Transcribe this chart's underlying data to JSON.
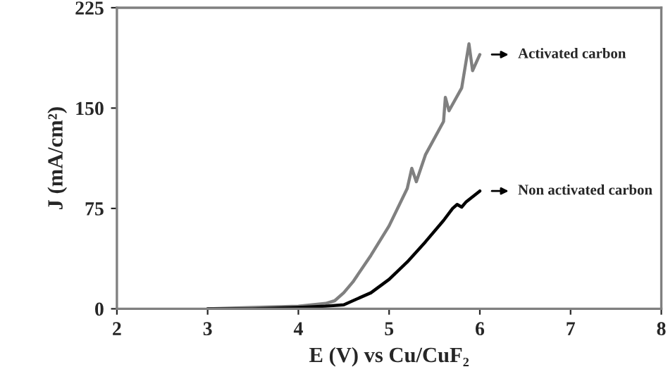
{
  "chart_data": {
    "type": "line",
    "xlabel": "E (V) vs Cu/CuF₂",
    "ylabel": "J (mA/cm²)",
    "xlim": [
      2,
      8
    ],
    "xticks": [
      2,
      3,
      4,
      5,
      6,
      7,
      8
    ],
    "ylim": [
      0,
      225
    ],
    "yticks": [
      0,
      75,
      150,
      225
    ],
    "grid": false,
    "legend": false,
    "marker": "none",
    "line_style": "solid",
    "series": [
      {
        "color": "#808080",
        "x": [
          3.0,
          3.5,
          4.0,
          4.3,
          4.4,
          4.5,
          4.6,
          4.8,
          5.0,
          5.2,
          5.25,
          5.3,
          5.4,
          5.6,
          5.62,
          5.66,
          5.8,
          5.88,
          5.92,
          6.0
        ],
        "values": [
          0,
          1,
          2,
          4,
          6,
          12,
          20,
          40,
          62,
          90,
          105,
          95,
          115,
          140,
          158,
          148,
          165,
          198,
          178,
          190
        ]
      },
      {
        "color": "#000000",
        "x": [
          3.0,
          3.5,
          4.0,
          4.3,
          4.5,
          4.8,
          5.0,
          5.2,
          5.4,
          5.6,
          5.7,
          5.75,
          5.8,
          5.85,
          6.0
        ],
        "values": [
          0,
          0,
          1,
          2,
          3,
          12,
          22,
          35,
          50,
          66,
          75,
          78,
          76,
          80,
          88
        ]
      }
    ],
    "annotations": [
      {
        "text": "Activated carbon",
        "x": 6.0,
        "y": 190
      },
      {
        "text": "Non activated carbon",
        "x": 6.0,
        "y": 88
      }
    ]
  }
}
